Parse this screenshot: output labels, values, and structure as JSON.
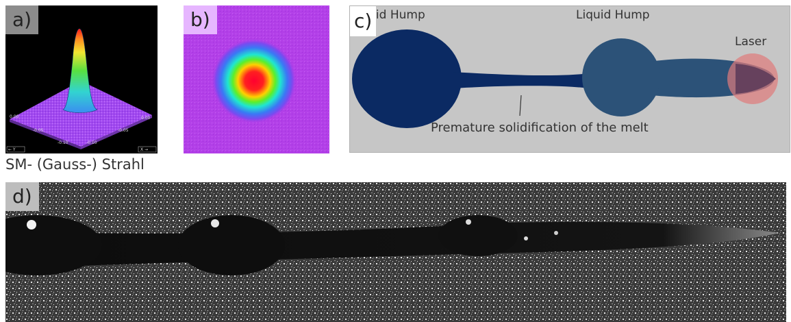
{
  "panel_a": {
    "tag": "a)",
    "caption": "SM- (Gauss-) Strahl",
    "tick_labels": [
      "0.00",
      "-0.05",
      "-0.10",
      "-0.10",
      "-0.05",
      "0.00"
    ],
    "axis_left": "← Y",
    "axis_right": "X →"
  },
  "panel_b": {
    "tag": "b)"
  },
  "panel_c": {
    "tag": "c)",
    "labels": {
      "solid_hump": "Solid Hump",
      "liquid_hump": "Liquid Hump",
      "laser": "Laser",
      "premature": "Premature solidification of the melt"
    },
    "colors": {
      "background": "#c6c6c6",
      "solid": "#0b2a63",
      "liquid": "#2c5278",
      "laser": "#e07a7a"
    }
  },
  "panel_d": {
    "tag": "d)"
  }
}
